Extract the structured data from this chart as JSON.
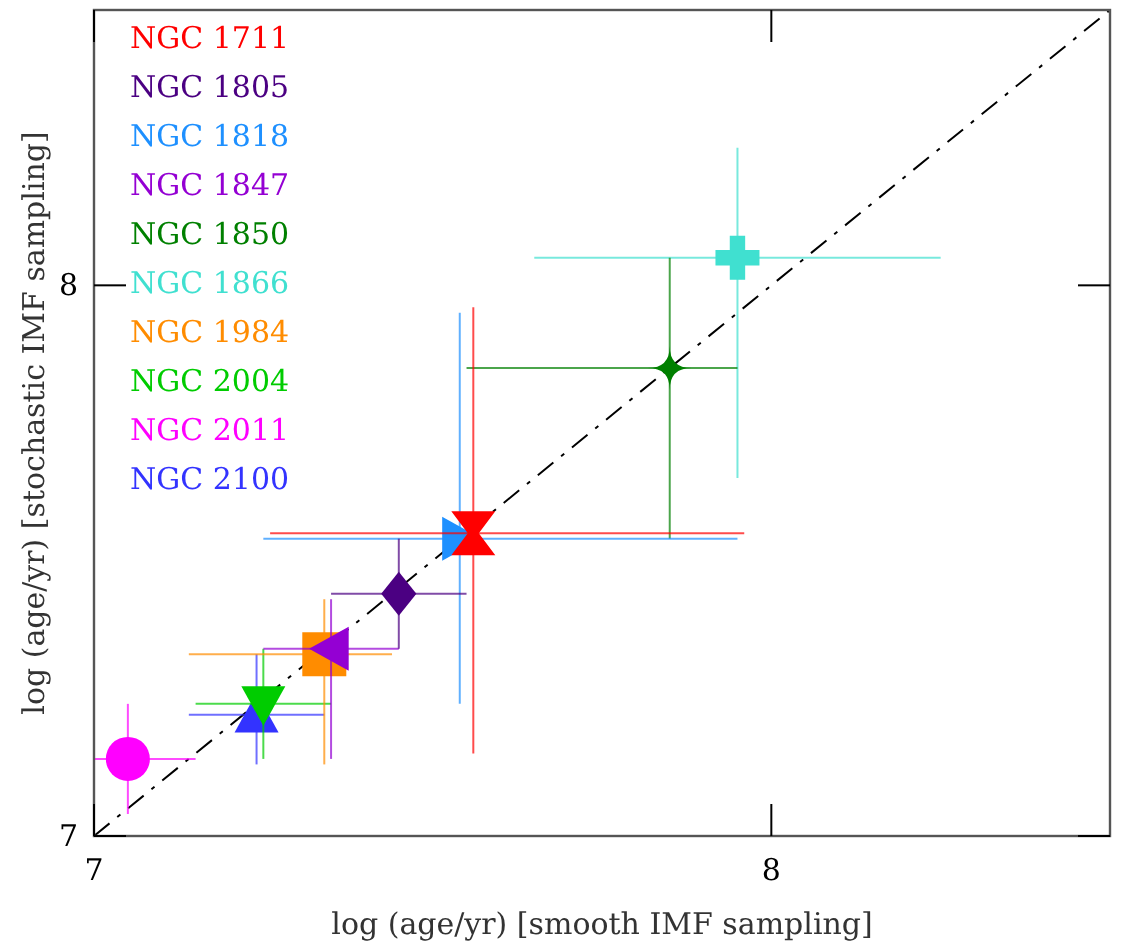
{
  "chart_data": {
    "type": "scatter",
    "xlabel": "log (age/yr) [smooth IMF sampling]",
    "ylabel": "log (age/yr) [stochastic IMF sampling]",
    "xlim": [
      7,
      8.5
    ],
    "ylim": [
      7,
      8.5
    ],
    "xticks": [
      7,
      8
    ],
    "yticks": [
      7,
      8
    ],
    "grid": false,
    "legend": "top left",
    "series": [
      {
        "name": "NGC 1711",
        "color": "#ff0000",
        "marker": "triangle-hourglass",
        "x": [
          7.56
        ],
        "values": [
          7.55
        ],
        "xerrors": [
          [
            7.26,
            7.96
          ]
        ],
        "errors": [
          [
            7.15,
            7.96
          ]
        ]
      },
      {
        "name": "NGC 1805",
        "color": "#4b0082",
        "marker": "diamond",
        "x": [
          7.45
        ],
        "values": [
          7.44
        ],
        "xerrors": [
          [
            7.35,
            7.55
          ]
        ],
        "errors": [
          [
            7.34,
            7.54
          ]
        ]
      },
      {
        "name": "NGC 1818",
        "color": "#1e90ff",
        "marker": "triangle-right",
        "x": [
          7.54
        ],
        "values": [
          7.54
        ],
        "xerrors": [
          [
            7.25,
            7.95
          ]
        ],
        "errors": [
          [
            7.24,
            7.95
          ]
        ]
      },
      {
        "name": "NGC 1847",
        "color": "#9400d3",
        "marker": "triangle-left",
        "x": [
          7.35
        ],
        "values": [
          7.34
        ],
        "xerrors": [
          [
            7.25,
            7.45
          ]
        ],
        "errors": [
          [
            7.14,
            7.43
          ]
        ]
      },
      {
        "name": "NGC 1850",
        "color": "#008000",
        "marker": "star",
        "x": [
          7.85
        ],
        "values": [
          7.85
        ],
        "xerrors": [
          [
            7.55,
            7.95
          ]
        ],
        "errors": [
          [
            7.54,
            8.05
          ]
        ]
      },
      {
        "name": "NGC 1866",
        "color": "#40e0d0",
        "marker": "cross",
        "x": [
          7.95
        ],
        "values": [
          8.05
        ],
        "xerrors": [
          [
            7.65,
            8.25
          ]
        ],
        "errors": [
          [
            7.65,
            8.25
          ]
        ]
      },
      {
        "name": "NGC 1984",
        "color": "#ff8c00",
        "marker": "square",
        "x": [
          7.34
        ],
        "values": [
          7.33
        ],
        "xerrors": [
          [
            7.14,
            7.44
          ]
        ],
        "errors": [
          [
            7.13,
            7.43
          ]
        ]
      },
      {
        "name": "NGC 2004",
        "color": "#00cc00",
        "marker": "triangle-down",
        "x": [
          7.25
        ],
        "values": [
          7.24
        ],
        "xerrors": [
          [
            7.15,
            7.35
          ]
        ],
        "errors": [
          [
            7.14,
            7.34
          ]
        ]
      },
      {
        "name": "NGC 2011",
        "color": "#ff00ff",
        "marker": "circle",
        "x": [
          7.05
        ],
        "values": [
          7.14
        ],
        "xerrors": [
          [
            7.0,
            7.15
          ]
        ],
        "errors": [
          [
            7.04,
            7.24
          ]
        ]
      },
      {
        "name": "NGC 2100",
        "color": "#3333ff",
        "marker": "triangle",
        "x": [
          7.24
        ],
        "values": [
          7.22
        ],
        "xerrors": [
          [
            7.14,
            7.34
          ]
        ],
        "errors": [
          [
            7.13,
            7.33
          ]
        ]
      },
      {
        "type": "line",
        "color": "#000000",
        "line_style": "dashed",
        "marker": "none",
        "x": [
          7,
          8.5
        ],
        "values": [
          7,
          8.5
        ]
      }
    ]
  }
}
